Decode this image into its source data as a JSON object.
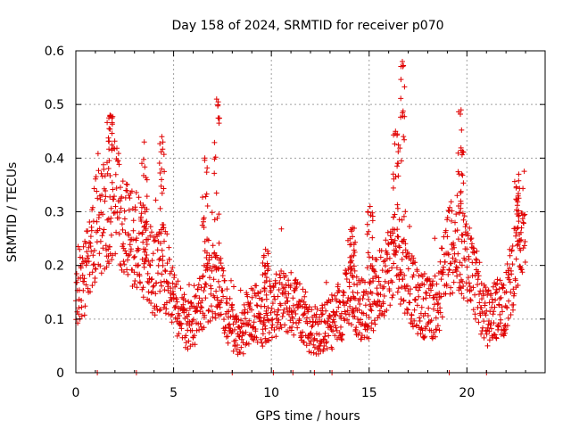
{
  "chart_data": {
    "type": "scatter",
    "title": "Day 158 of 2024, SRMTID for receiver p070",
    "xlabel": "GPS time / hours",
    "ylabel": "SRMTID / TECUs",
    "xlim": [
      0,
      24
    ],
    "ylim": [
      0,
      0.6
    ],
    "xticks": [
      0,
      5,
      10,
      15,
      20
    ],
    "yticks": [
      0,
      0.1,
      0.2,
      0.3,
      0.4,
      0.5,
      0.6
    ],
    "xtick_labels": [
      "0",
      "5",
      "10",
      "15",
      "20"
    ],
    "ytick_labels": [
      "0",
      "0.1",
      "0.2",
      "0.3",
      "0.4",
      "0.5",
      "0.6"
    ],
    "grid": true,
    "marker": "+",
    "color": "#e00000",
    "zero_values_x": [
      1.1,
      3.1,
      8.0,
      10.1,
      11.1,
      12.2,
      13.1,
      19.1,
      21.0
    ],
    "trend": {
      "x": [
        0,
        0.5,
        1.0,
        1.5,
        2.0,
        2.5,
        3.0,
        3.5,
        4.0,
        4.5,
        5.0,
        5.5,
        6.0,
        6.5,
        7.0,
        7.5,
        8.0,
        8.5,
        9.0,
        9.5,
        10.0,
        10.5,
        11.0,
        11.5,
        12.0,
        12.5,
        13.0,
        13.5,
        14.0,
        14.5,
        15.0,
        15.5,
        16.0,
        16.5,
        17.0,
        17.5,
        18.0,
        18.5,
        19.0,
        19.5,
        20.0,
        20.5,
        21.0,
        21.5,
        22.0,
        22.5,
        23.0
      ],
      "y": [
        0.13,
        0.18,
        0.27,
        0.3,
        0.33,
        0.26,
        0.25,
        0.22,
        0.18,
        0.2,
        0.13,
        0.1,
        0.09,
        0.14,
        0.17,
        0.14,
        0.08,
        0.07,
        0.12,
        0.1,
        0.12,
        0.13,
        0.13,
        0.12,
        0.08,
        0.08,
        0.09,
        0.11,
        0.15,
        0.12,
        0.12,
        0.16,
        0.2,
        0.22,
        0.17,
        0.13,
        0.12,
        0.12,
        0.23,
        0.24,
        0.22,
        0.16,
        0.1,
        0.12,
        0.13,
        0.22,
        0.3
      ]
    },
    "peaks": [
      {
        "x": 1.75,
        "y": 0.48
      },
      {
        "x": 3.5,
        "y": 0.43
      },
      {
        "x": 4.4,
        "y": 0.44
      },
      {
        "x": 6.6,
        "y": 0.4
      },
      {
        "x": 7.2,
        "y": 0.51
      },
      {
        "x": 9.7,
        "y": 0.23
      },
      {
        "x": 14.15,
        "y": 0.27
      },
      {
        "x": 15.05,
        "y": 0.31
      },
      {
        "x": 16.35,
        "y": 0.45
      },
      {
        "x": 16.7,
        "y": 0.58
      },
      {
        "x": 19.7,
        "y": 0.49
      },
      {
        "x": 22.65,
        "y": 0.37
      }
    ]
  }
}
